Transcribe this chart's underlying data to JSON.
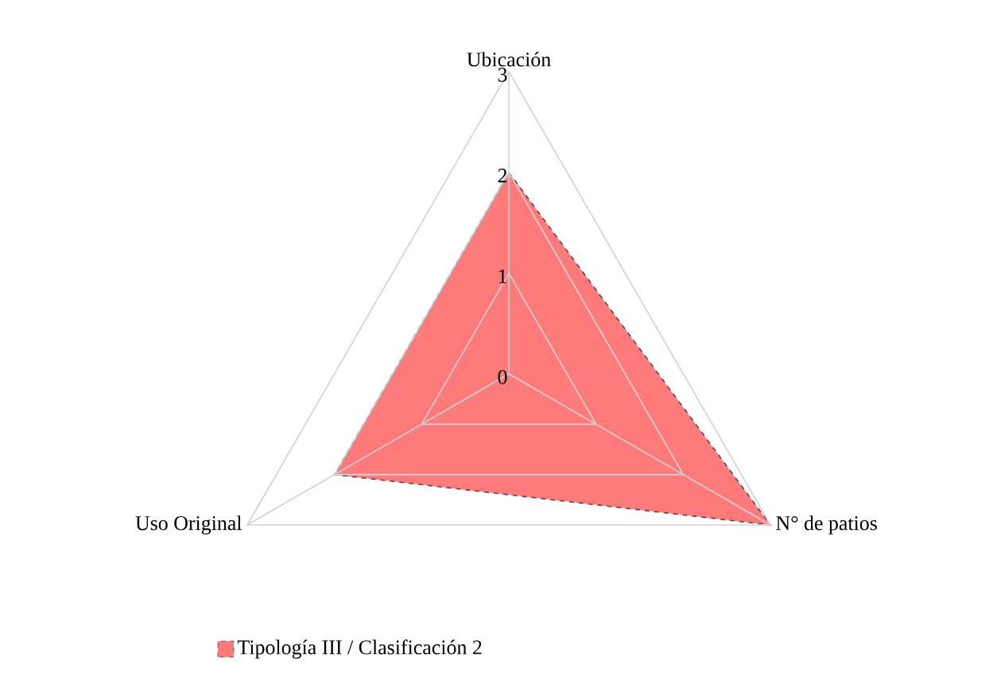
{
  "chart_data": {
    "type": "radar",
    "categories": [
      "Ubicación",
      "N° de patios",
      "Uso Original"
    ],
    "series": [
      {
        "name": "Tipología III / Clasificación 2",
        "color": "#ff7b7b",
        "values": [
          2,
          3,
          2
        ]
      }
    ],
    "ylim": [
      0,
      3
    ],
    "yticks": [
      0,
      1,
      2,
      3
    ],
    "grid": true,
    "legend": "bottom",
    "line_style": "dashed",
    "marker": "none"
  }
}
